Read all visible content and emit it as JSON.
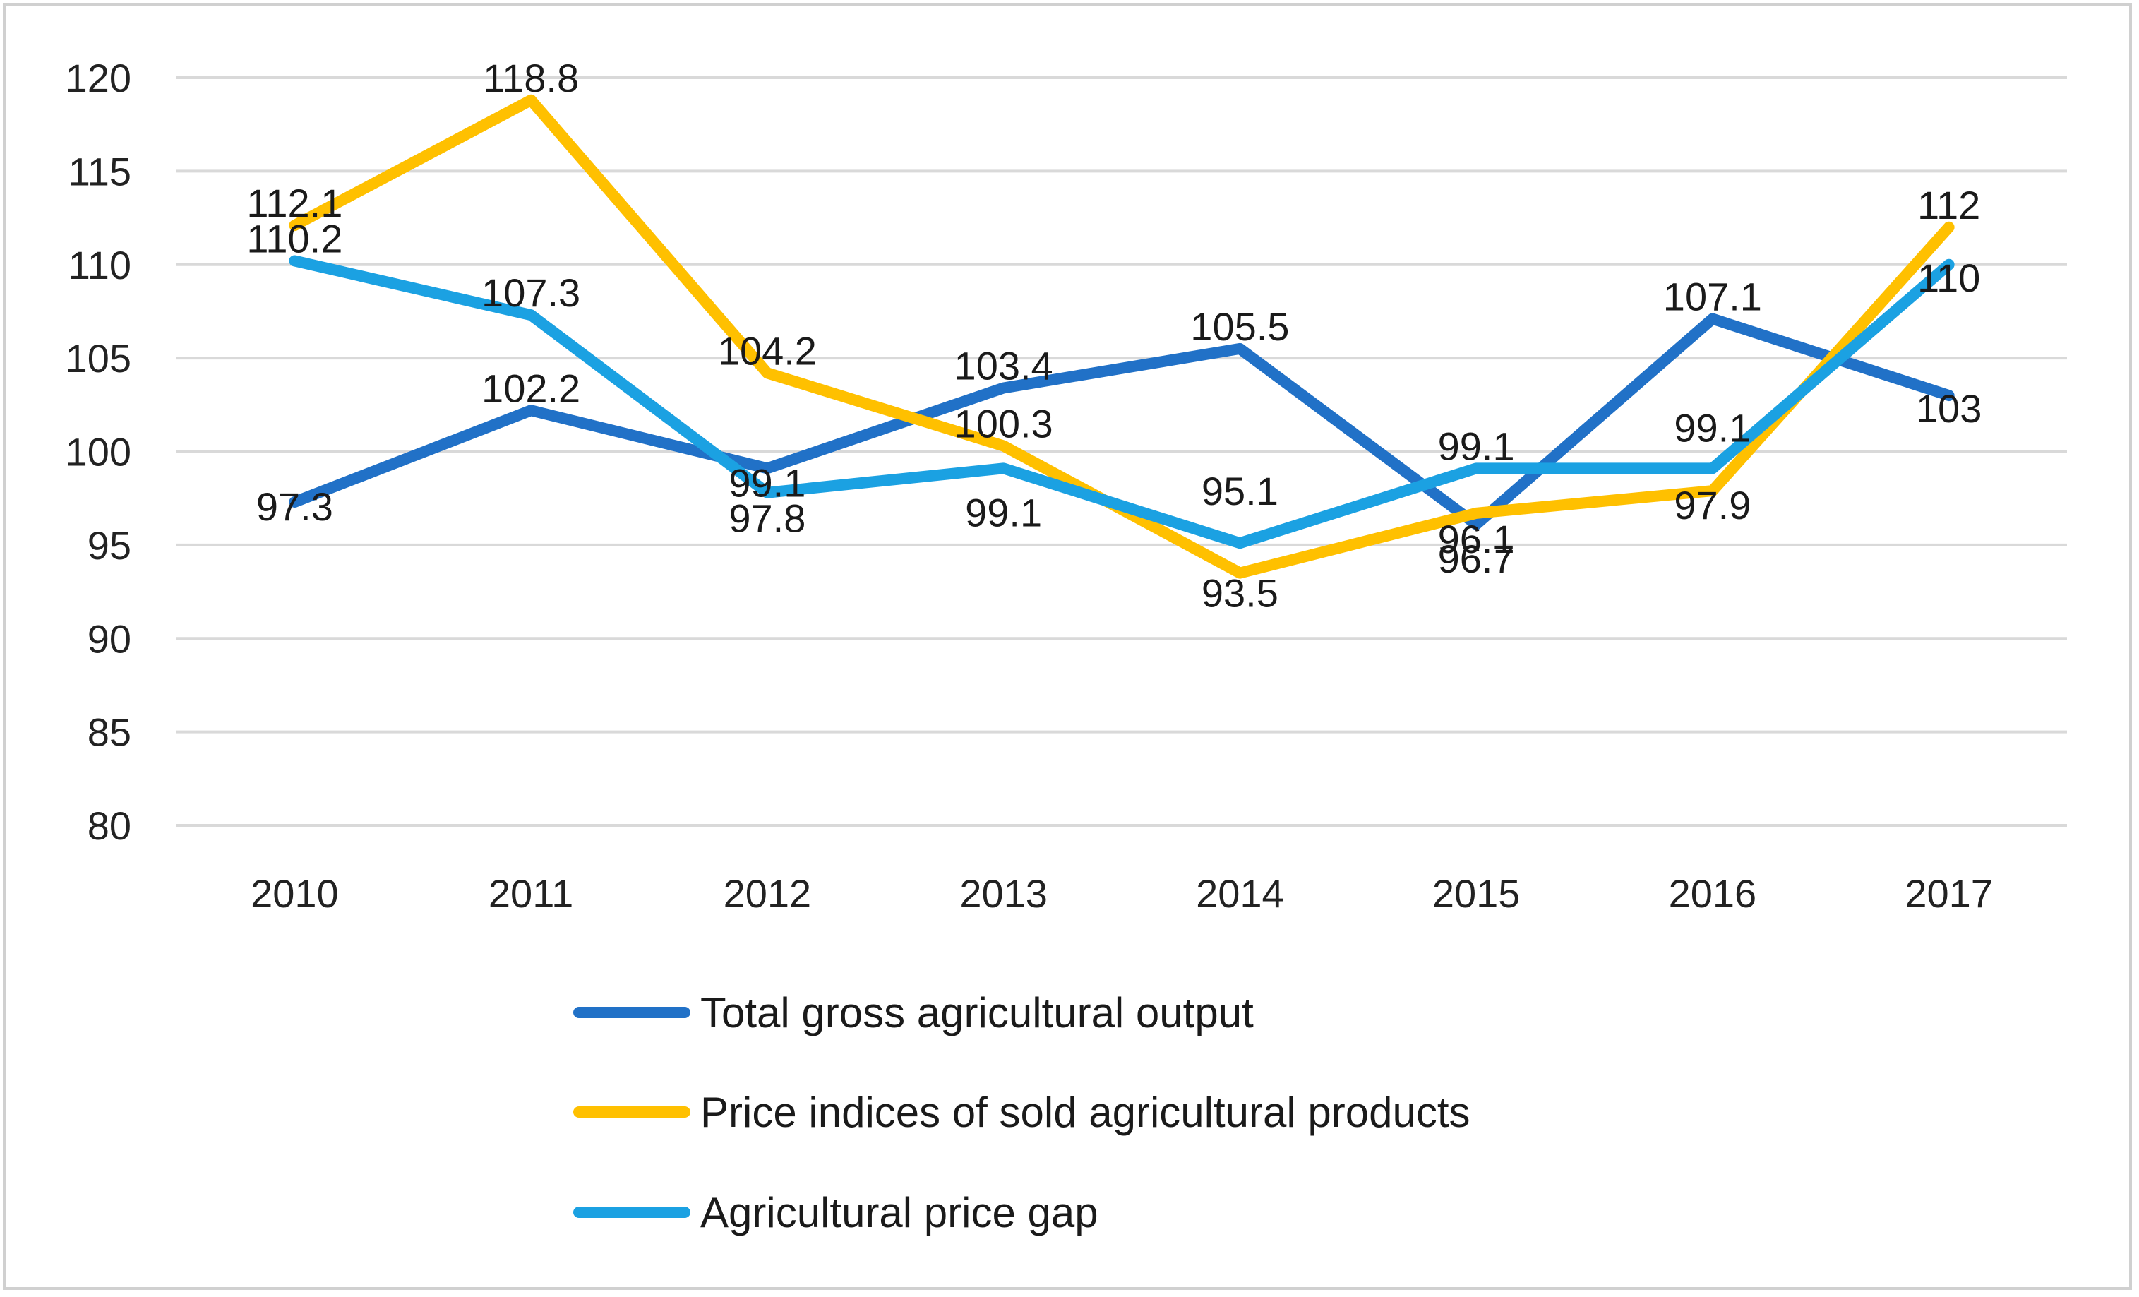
{
  "chart_data": {
    "type": "line",
    "title": "",
    "xlabel": "",
    "ylabel": "",
    "categories": [
      "2010",
      "2011",
      "2012",
      "2013",
      "2014",
      "2015",
      "2016",
      "2017"
    ],
    "ylim": [
      80,
      120
    ],
    "yticks": [
      80,
      85,
      90,
      95,
      100,
      105,
      110,
      115,
      120
    ],
    "grid": true,
    "legend_position": "bottom",
    "series": [
      {
        "name": "Total gross agricultural output",
        "color": "#2171c7",
        "values": [
          97.3,
          102.2,
          99.1,
          103.4,
          105.5,
          96.1,
          107.1,
          103
        ],
        "labels": [
          "97.3",
          "102.2",
          "99.1",
          "103.4",
          "105.5",
          "96.1",
          "107.1",
          "103"
        ]
      },
      {
        "name": "Price indices of sold agricultural products",
        "color": "#ffc000",
        "values": [
          112.1,
          118.8,
          104.2,
          100.3,
          93.5,
          96.7,
          97.9,
          112
        ],
        "labels": [
          "112.1",
          "118.8",
          "104.2",
          "100.3",
          "93.5",
          "96.7",
          "97.9",
          "112"
        ]
      },
      {
        "name": "Agricultural price gap",
        "color": "#1ba1e2",
        "values": [
          110.2,
          107.3,
          97.8,
          99.1,
          95.1,
          99.1,
          99.1,
          110
        ],
        "labels": [
          "110.2",
          "107.3",
          "97.8",
          "99.1",
          "95.1",
          "99.1",
          "99.1",
          "110"
        ]
      }
    ]
  }
}
